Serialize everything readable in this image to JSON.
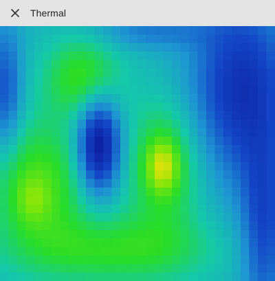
{
  "header": {
    "title": "Thermal",
    "close_icon": "close-icon"
  }
}
